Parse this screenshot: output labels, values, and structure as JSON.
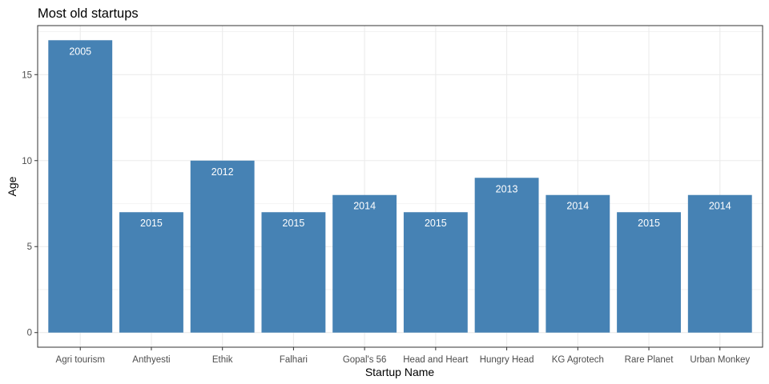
{
  "chart_data": {
    "type": "bar",
    "title": "Most old startups",
    "xlabel": "Startup Name",
    "ylabel": "Age",
    "categories": [
      "Agri tourism",
      "Anthyesti",
      "Ethik",
      "Falhari",
      "Gopal's 56",
      "Head and Heart",
      "Hungry Head",
      "KG Agrotech",
      "Rare Planet",
      "Urban Monkey"
    ],
    "values": [
      17,
      7,
      10,
      7,
      8,
      7,
      9,
      8,
      7,
      8
    ],
    "bar_labels": [
      "2005",
      "2015",
      "2012",
      "2015",
      "2014",
      "2015",
      "2013",
      "2014",
      "2015",
      "2014"
    ],
    "yticks": [
      0,
      5,
      10,
      15
    ],
    "ylim": [
      -0.85,
      17.85
    ],
    "grid": true,
    "bar_color": "#4682B4",
    "grid_color": "#ebebeb",
    "panel_border_color": "#333333"
  }
}
